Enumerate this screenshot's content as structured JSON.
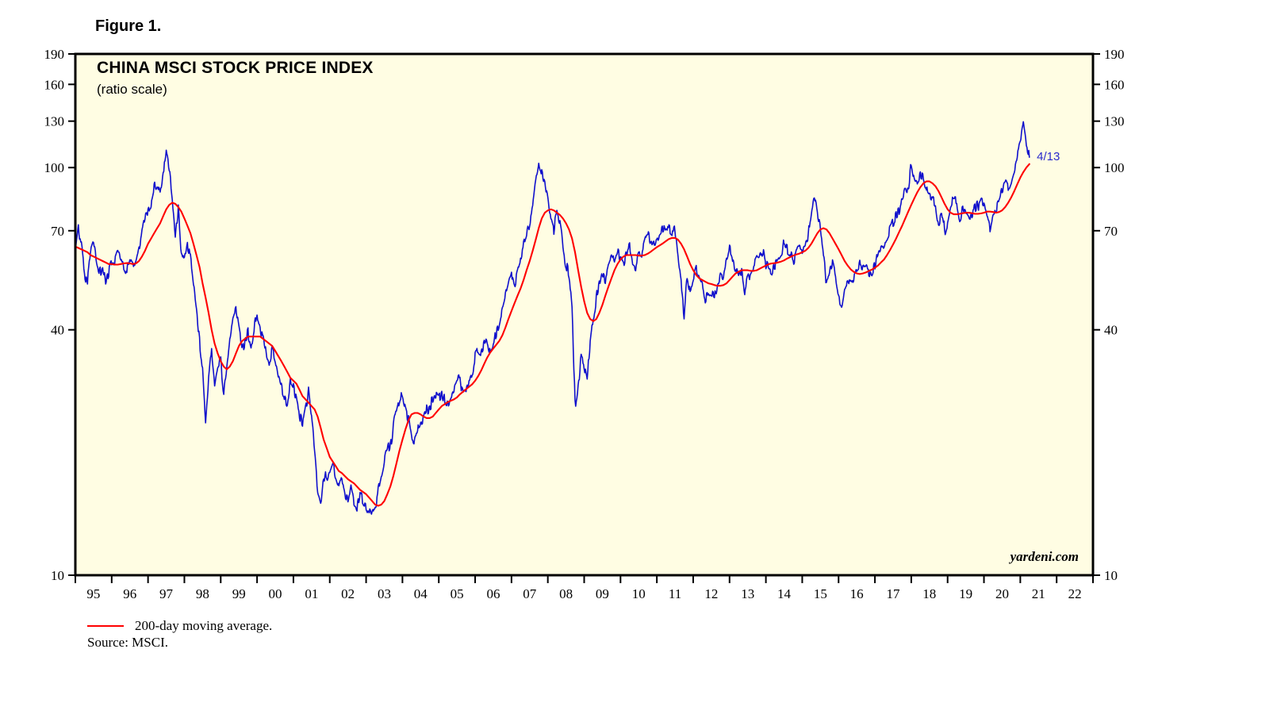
{
  "figure_label": "Figure 1.",
  "header": {
    "title": "CHINA MSCI STOCK PRICE INDEX",
    "subtitle": "(ratio scale)"
  },
  "watermark": "yardeni.com",
  "legend": {
    "ma_label": "200-day moving average."
  },
  "source": "Source: MSCI.",
  "colors": {
    "price_line": "#0f0fcc",
    "ma_line": "#ff0000",
    "plot_background": "#fffde3",
    "frame": "#000000",
    "annotation_text": "#2929cc"
  },
  "chart_data": {
    "type": "line",
    "title": "CHINA MSCI STOCK PRICE INDEX",
    "subtitle": "(ratio scale)",
    "y_scale": "log (ratio scale)",
    "ylim": [
      10,
      190
    ],
    "y_ticks": [
      10,
      40,
      70,
      100,
      130,
      160,
      190
    ],
    "x_domain": [
      1995,
      2023
    ],
    "x_tick_labels": [
      "95",
      "96",
      "97",
      "98",
      "99",
      "00",
      "01",
      "02",
      "03",
      "04",
      "05",
      "06",
      "07",
      "08",
      "09",
      "10",
      "11",
      "12",
      "13",
      "14",
      "15",
      "16",
      "17",
      "18",
      "19",
      "20",
      "21",
      "22"
    ],
    "sampling": "monthly estimates read from chart, Jan 1995 through mid-Apr 2021",
    "grid": "off",
    "legend_position": "below-left",
    "annotation": {
      "label": "4/13",
      "x": 2021.28,
      "y": 106
    },
    "series": [
      {
        "name": "MSCI China stock price index (daily)",
        "color": "#0f0fcc",
        "start_x": 1995.0,
        "step_years": 0.0833333,
        "values": [
          62,
          70,
          64,
          56,
          52,
          62,
          65,
          58,
          55,
          57,
          53,
          56,
          58,
          60,
          63,
          60,
          57,
          55,
          58,
          56,
          60,
          64,
          70,
          76,
          78,
          82,
          88,
          92,
          86,
          96,
          108,
          98,
          84,
          68,
          80,
          62,
          58,
          64,
          60,
          52,
          45,
          38,
          32,
          24,
          30,
          36,
          30,
          33,
          34,
          28,
          32,
          38,
          43,
          45,
          40,
          36,
          38,
          40,
          36,
          40,
          44,
          41,
          38,
          35,
          33,
          36,
          34,
          31,
          29,
          27,
          26,
          30,
          29,
          27,
          25,
          24,
          26,
          28,
          24,
          20,
          16,
          15,
          18,
          17,
          18,
          19,
          17.5,
          16.5,
          17.5,
          16,
          15.5,
          16.5,
          15,
          14.5,
          15.5,
          15,
          14.8,
          14.2,
          13.8,
          14.5,
          16,
          17.5,
          19,
          20,
          21,
          23,
          25,
          27,
          28,
          26,
          24.5,
          22,
          21.5,
          23,
          24,
          24.5,
          25.5,
          26,
          26.5,
          27.5,
          27,
          28,
          26.5,
          26,
          27,
          28,
          29.5,
          30,
          29,
          28.5,
          30,
          31.5,
          34,
          36,
          35,
          37,
          38,
          35.5,
          37,
          39,
          41,
          44,
          48,
          52,
          55,
          52,
          56,
          60,
          64,
          68,
          74,
          80,
          92,
          104,
          96,
          90,
          84,
          74,
          70,
          76,
          72,
          64,
          58,
          54,
          44,
          26,
          30,
          34,
          33,
          30,
          36,
          42,
          48,
          52,
          56,
          54,
          58,
          60,
          58,
          62,
          60,
          58,
          62,
          64,
          58,
          57,
          61,
          60,
          64,
          68,
          65,
          66,
          66,
          68,
          70,
          72,
          70,
          68,
          70,
          60,
          52,
          44,
          54,
          50,
          55,
          58,
          54,
          52,
          48,
          50,
          49,
          48,
          52,
          55,
          54,
          58,
          62,
          60,
          56,
          53,
          56,
          50,
          54,
          56,
          58,
          60,
          61,
          63,
          58,
          56,
          55,
          58,
          60,
          62,
          65,
          64,
          63,
          60,
          62,
          64,
          64,
          66,
          68,
          78,
          85,
          78,
          72,
          60,
          52,
          56,
          58,
          54,
          48,
          46,
          52,
          53,
          51,
          53,
          56,
          58,
          57,
          58,
          56,
          55,
          58,
          61,
          63,
          64,
          67,
          70,
          73,
          76,
          78,
          84,
          90,
          88,
          103,
          94,
          92,
          96,
          94,
          88,
          86,
          84,
          82,
          74,
          78,
          70,
          74,
          80,
          84,
          84,
          76,
          78,
          76,
          73,
          76,
          78,
          80,
          84,
          82,
          78,
          72,
          78,
          80,
          84,
          90,
          92,
          90,
          94,
          100,
          108,
          115,
          128,
          112,
          106
        ]
      },
      {
        "name": "200-day moving average",
        "color": "#ff0000",
        "start_x": 1995.0,
        "step_years": 0.0833333,
        "values": [
          64,
          63.5,
          63,
          62.5,
          62,
          61,
          60.5,
          60,
          59.5,
          59,
          58.5,
          58,
          58,
          57.8,
          57.8,
          58,
          58.2,
          58.3,
          58.2,
          58,
          58.2,
          59,
          60.5,
          62.5,
          65,
          67,
          69,
          71,
          73,
          76,
          79,
          81,
          82,
          81.5,
          80,
          78,
          75,
          72,
          69,
          65,
          61,
          57,
          52,
          48,
          44,
          40,
          37,
          35,
          33.5,
          32.5,
          32,
          32.5,
          33.5,
          35,
          36.5,
          37.5,
          38,
          38.5,
          38.5,
          38.5,
          38.5,
          38.5,
          38,
          37.5,
          37,
          36.5,
          35.5,
          34.5,
          33.5,
          32.5,
          31.5,
          30.5,
          30,
          29.5,
          28.5,
          27.5,
          27,
          26.5,
          26,
          25.5,
          24.5,
          23,
          21.5,
          20.5,
          19.5,
          19,
          18.5,
          18,
          17.8,
          17.5,
          17.2,
          17,
          16.8,
          16.5,
          16.2,
          16,
          15.8,
          15.5,
          15.2,
          14.9,
          14.8,
          14.9,
          15.2,
          15.8,
          16.5,
          17.5,
          18.8,
          20.2,
          21.5,
          22.8,
          24,
          24.8,
          25,
          25,
          24.8,
          24.5,
          24.3,
          24.3,
          24.5,
          25,
          25.5,
          26,
          26.3,
          26.6,
          26.8,
          27,
          27.3,
          27.8,
          28.2,
          28.6,
          29,
          29.4,
          30,
          30.8,
          31.8,
          33,
          34.2,
          35.2,
          36,
          36.8,
          37.6,
          38.8,
          40.5,
          42.5,
          44.5,
          46.5,
          48.5,
          50.5,
          53,
          56,
          59,
          62.5,
          66.5,
          71,
          75,
          77.5,
          78.5,
          79,
          78.5,
          77.5,
          76.5,
          75,
          73,
          70.5,
          67,
          62,
          56,
          51,
          47,
          44,
          42.5,
          42,
          42.5,
          44,
          46,
          48.5,
          51,
          53.5,
          56,
          58,
          59.5,
          60.5,
          61,
          61,
          61,
          61,
          60.8,
          60.8,
          61,
          61.5,
          62.2,
          63,
          63.8,
          64.5,
          65.2,
          66,
          66.8,
          67.2,
          67.2,
          66.5,
          65,
          63,
          60.5,
          58,
          56,
          54.5,
          53.5,
          53,
          52.5,
          52,
          51.8,
          51.5,
          51.3,
          51.3,
          51.5,
          52,
          53,
          54,
          55,
          55.5,
          56,
          56,
          56,
          55.8,
          55.8,
          56,
          56.5,
          57,
          57.5,
          58,
          58.2,
          58.3,
          58.5,
          58.8,
          59.2,
          59.8,
          60.3,
          60.8,
          61.2,
          61.5,
          62,
          62.5,
          63.5,
          65,
          67,
          69,
          70.5,
          71,
          70.5,
          69,
          67,
          65,
          63,
          61,
          59,
          57.5,
          56.3,
          55.5,
          55,
          54.8,
          55,
          55.3,
          55.8,
          56.2,
          56.8,
          57.5,
          58.5,
          59.5,
          61,
          62.8,
          64.8,
          67,
          69.5,
          72,
          75,
          78,
          81,
          84,
          87,
          89.5,
          91.5,
          92.5,
          92.5,
          91.5,
          90,
          87.5,
          84.5,
          81.5,
          79,
          77.5,
          76.8,
          76.8,
          77,
          77.3,
          77.5,
          77.5,
          77.3,
          77,
          77,
          77.2,
          77.5,
          78,
          78,
          77.8,
          77.5,
          77.8,
          78.5,
          80,
          82,
          84.5,
          87.5,
          91,
          94.5,
          97.5,
          100,
          102
        ]
      }
    ]
  }
}
